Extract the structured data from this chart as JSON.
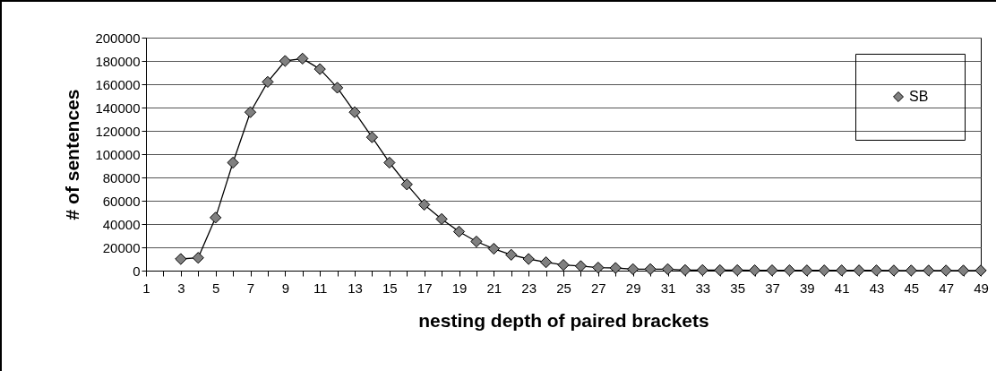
{
  "chart_data": {
    "type": "line",
    "xlabel": "nesting depth of paired brackets",
    "ylabel": "# of sentences",
    "series": [
      {
        "name": "SB",
        "color": "#808080",
        "x": [
          3,
          4,
          5,
          6,
          7,
          8,
          9,
          10,
          11,
          12,
          13,
          14,
          15,
          16,
          17,
          18,
          19,
          20,
          21,
          22,
          23,
          24,
          25,
          26,
          27,
          28,
          29,
          30,
          31,
          32,
          33,
          34,
          35,
          36,
          37,
          38,
          39,
          40,
          41,
          42,
          43,
          44,
          45,
          46,
          47,
          48,
          49
        ],
        "values": [
          10000,
          11000,
          45500,
          92700,
          136000,
          162000,
          180000,
          182000,
          173000,
          157000,
          136000,
          114500,
          92700,
          74000,
          56600,
          44300,
          33500,
          25000,
          18800,
          13600,
          10000,
          7200,
          4900,
          3900,
          2600,
          2300,
          1300,
          1300,
          1300,
          500,
          500,
          400,
          400,
          300,
          300,
          300,
          200,
          200,
          200,
          200,
          200,
          100,
          100,
          100,
          100,
          100,
          100
        ]
      }
    ],
    "xlim": [
      1,
      49
    ],
    "xticks": [
      1,
      {
        "value": 2,
        "label": null
      },
      3,
      {
        "value": 4,
        "label": null
      },
      5,
      {
        "value": 6,
        "label": null
      },
      7,
      {
        "value": 8,
        "label": null
      },
      9,
      {
        "value": 10,
        "label": null
      },
      11,
      {
        "value": 12,
        "label": null
      },
      13,
      {
        "value": 14,
        "label": null
      },
      15,
      {
        "value": 16,
        "label": null
      },
      17,
      {
        "value": 18,
        "label": null
      },
      19,
      {
        "value": 20,
        "label": null
      },
      21,
      {
        "value": 22,
        "label": null
      },
      23,
      {
        "value": 24,
        "label": null
      },
      25,
      {
        "value": 26,
        "label": null
      },
      27,
      {
        "value": 28,
        "label": null
      },
      29,
      {
        "value": 30,
        "label": null
      },
      31,
      {
        "value": 32,
        "label": null
      },
      33,
      {
        "value": 34,
        "label": null
      },
      35,
      {
        "value": 36,
        "label": null
      },
      37,
      {
        "value": 38,
        "label": null
      },
      39,
      {
        "value": 40,
        "label": null
      },
      41,
      {
        "value": 42,
        "label": null
      },
      43,
      {
        "value": 44,
        "label": null
      },
      45,
      {
        "value": 46,
        "label": null
      },
      47,
      {
        "value": 48,
        "label": null
      },
      49
    ],
    "ylim": [
      0,
      200000
    ],
    "yticks": [
      0,
      20000,
      40000,
      60000,
      80000,
      100000,
      120000,
      140000,
      160000,
      180000,
      200000
    ],
    "grid": "y",
    "legend": "top right",
    "marker": "diamond",
    "line_style": "solid"
  }
}
